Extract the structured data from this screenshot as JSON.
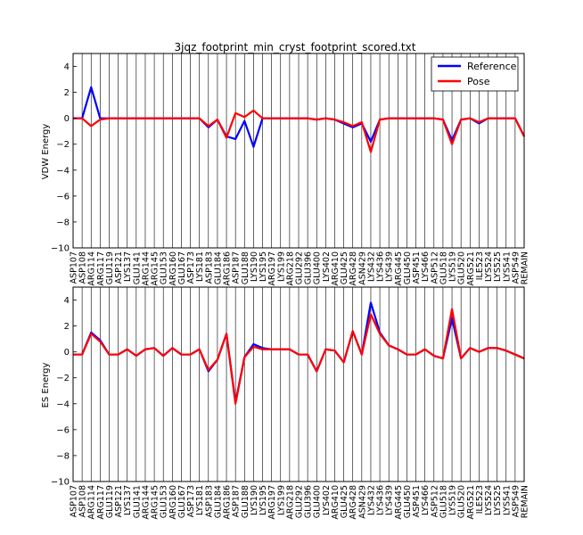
{
  "chart_data": [
    {
      "type": "line",
      "title": "3jqz_footprint_min_cryst_footprint_scored.txt",
      "ylabel": "VDW Energy",
      "xlabel": "",
      "ylim": [
        -10,
        5
      ],
      "yticks": [
        4,
        2,
        0,
        -2,
        -4,
        -6,
        -8,
        -10
      ],
      "grid": "vertical",
      "legend_position": "top-right",
      "categories": [
        "ASP107",
        "ASP108",
        "ARG114",
        "ARG117",
        "GLU119",
        "ASP121",
        "LYS137",
        "GLU141",
        "ARG144",
        "ARG145",
        "GLU153",
        "ARG160",
        "GLU167",
        "ASP173",
        "LYS181",
        "ASP183",
        "GLU184",
        "ARG186",
        "ASP187",
        "GLU188",
        "LYS190",
        "LYS195",
        "ARG197",
        "LYS199",
        "ARG218",
        "GLU292",
        "GLU396",
        "GLU400",
        "LYS402",
        "ARG410",
        "GLU425",
        "ARG428",
        "ASN429",
        "LYS432",
        "LYS436",
        "LYS439",
        "ARG445",
        "GLU450",
        "ASP451",
        "LYS466",
        "ASP512",
        "GLU518",
        "LYS519",
        "GLU520",
        "ARG521",
        "ILE523",
        "LYS524",
        "LYS525",
        "LYS541",
        "ASP549",
        "REMAIN"
      ],
      "series": [
        {
          "name": "Reference",
          "color": "#0000ff",
          "values": [
            0,
            0,
            2.4,
            0,
            0,
            0,
            0,
            0,
            0,
            0,
            0,
            0,
            0,
            0,
            0,
            -0.7,
            -0.1,
            -1.4,
            -1.6,
            -0.2,
            -2.2,
            0,
            0,
            0,
            0,
            0,
            0,
            -0.1,
            0,
            -0.1,
            -0.4,
            -0.7,
            -0.4,
            -1.8,
            -0.1,
            0,
            0,
            0,
            0,
            0,
            0,
            -0.1,
            -1.7,
            -0.1,
            0,
            -0.4,
            0,
            0,
            0,
            0,
            -1.4
          ]
        },
        {
          "name": "Pose",
          "color": "#ff0000",
          "values": [
            0,
            0,
            -0.6,
            -0.1,
            0,
            0,
            0,
            0,
            0,
            0,
            0,
            0,
            0,
            0,
            0,
            -0.6,
            -0.1,
            -1.5,
            0.4,
            0.1,
            0.6,
            0,
            0,
            0,
            0,
            0,
            0,
            -0.1,
            0,
            -0.1,
            -0.3,
            -0.6,
            -0.3,
            -2.6,
            -0.1,
            0,
            0,
            0,
            0,
            0,
            0,
            -0.1,
            -2.0,
            -0.1,
            0,
            -0.3,
            0,
            0,
            0,
            0,
            -1.4
          ]
        }
      ]
    },
    {
      "type": "line",
      "title": "",
      "ylabel": "ES Energy",
      "xlabel": "",
      "ylim": [
        -10,
        5
      ],
      "yticks": [
        4,
        2,
        0,
        -2,
        -4,
        -6,
        -8,
        -10
      ],
      "grid": "vertical",
      "categories": [
        "ASP107",
        "ASP108",
        "ARG114",
        "ARG117",
        "GLU119",
        "ASP121",
        "LYS137",
        "GLU141",
        "ARG144",
        "ARG145",
        "GLU153",
        "ARG160",
        "GLU167",
        "ASP173",
        "LYS181",
        "ASP183",
        "GLU184",
        "ARG186",
        "ASP187",
        "GLU188",
        "LYS190",
        "LYS195",
        "ARG197",
        "LYS199",
        "ARG218",
        "GLU292",
        "GLU396",
        "GLU400",
        "LYS402",
        "ARG410",
        "GLU425",
        "ARG428",
        "ASN429",
        "LYS432",
        "LYS436",
        "LYS439",
        "ARG445",
        "GLU450",
        "ASP451",
        "LYS466",
        "ASP512",
        "GLU518",
        "LYS519",
        "GLU520",
        "ARG521",
        "ILE523",
        "LYS524",
        "LYS525",
        "LYS541",
        "ASP549",
        "REMAIN"
      ],
      "series": [
        {
          "name": "Reference",
          "color": "#0000ff",
          "values": [
            -0.2,
            -0.2,
            1.5,
            0.9,
            -0.2,
            -0.2,
            0.2,
            -0.3,
            0.2,
            0.3,
            -0.3,
            0.3,
            -0.2,
            -0.2,
            0.2,
            -1.5,
            -0.6,
            1.4,
            -3.9,
            -0.4,
            0.6,
            0.3,
            0.2,
            0.2,
            0.2,
            -0.2,
            -0.2,
            -1.5,
            0.2,
            0.1,
            -0.8,
            1.6,
            -0.2,
            3.8,
            1.5,
            0.5,
            0.2,
            -0.2,
            -0.2,
            0.2,
            -0.3,
            -0.5,
            2.6,
            -0.5,
            0.3,
            0,
            0.3,
            0.3,
            0.1,
            -0.2,
            -0.5
          ]
        },
        {
          "name": "Pose",
          "color": "#ff0000",
          "values": [
            -0.2,
            -0.2,
            1.4,
            0.8,
            -0.2,
            -0.2,
            0.2,
            -0.3,
            0.2,
            0.3,
            -0.3,
            0.3,
            -0.2,
            -0.2,
            0.2,
            -1.4,
            -0.6,
            1.4,
            -4.0,
            -0.4,
            0.4,
            0.2,
            0.2,
            0.2,
            0.2,
            -0.2,
            -0.2,
            -1.5,
            0.2,
            0.1,
            -0.8,
            1.6,
            -0.2,
            2.9,
            1.4,
            0.5,
            0.2,
            -0.2,
            -0.2,
            0.2,
            -0.3,
            -0.5,
            3.3,
            -0.5,
            0.3,
            0,
            0.3,
            0.3,
            0.1,
            -0.2,
            -0.5
          ]
        }
      ]
    }
  ]
}
